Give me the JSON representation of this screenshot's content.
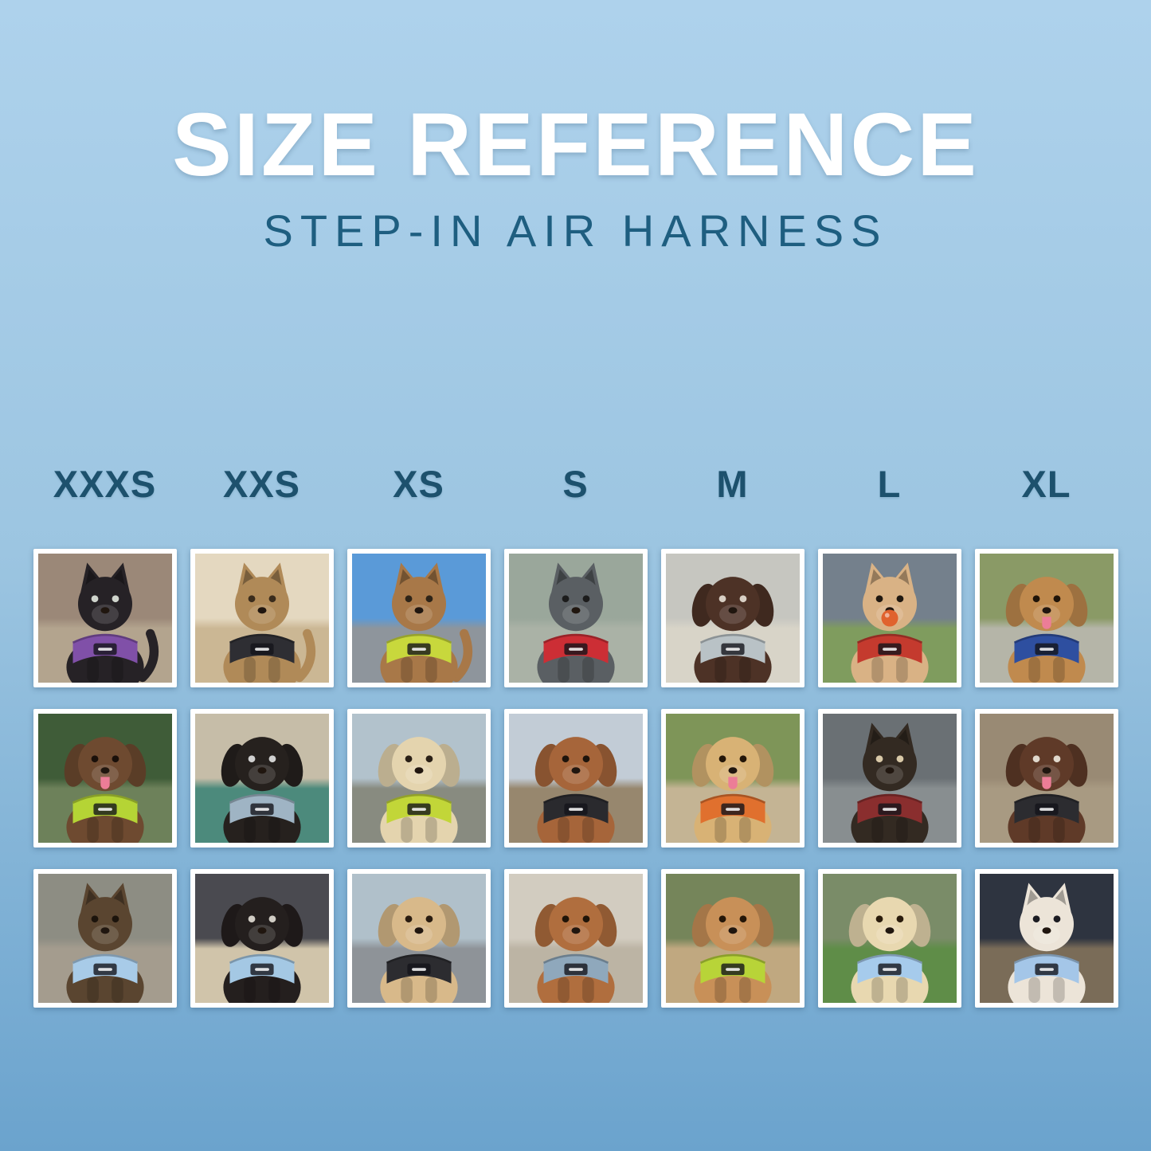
{
  "page": {
    "title": "SIZE REFERENCE",
    "subtitle": "STEP-IN AIR HARNESS"
  },
  "colors": {
    "background_top": "#aed2ec",
    "background_mid": "#9cc5e1",
    "background_bottom": "#6ba3cd",
    "title_text": "#ffffff",
    "subtitle_text": "#1e5e80",
    "size_label_text": "#1d516d",
    "card_background": "#ffffff"
  },
  "sizes": [
    "XXXS",
    "XXS",
    "XS",
    "S",
    "M",
    "L",
    "XL"
  ],
  "grid": {
    "rows": [
      {
        "cells": [
          {
            "size": "XXXS",
            "animal": "cat",
            "ears": "pointy",
            "coat": "#262226",
            "eyes": "#cfd4cc",
            "harness": "#8050a8",
            "scene_top": "#9b8878",
            "scene_bottom": "#b3a48e",
            "desc": "Black kitten in purple harness indoors"
          },
          {
            "size": "XXS",
            "animal": "cat",
            "ears": "pointy",
            "coat": "#b08a58",
            "eyes": "#3a2c1c",
            "harness": "#2e2e33",
            "scene_top": "#e4d8c0",
            "scene_bottom": "#cbb794",
            "desc": "Bengal cat in black harness by a curtain"
          },
          {
            "size": "XS",
            "animal": "cat",
            "ears": "pointy",
            "coat": "#a87848",
            "eyes": "#2e2418",
            "harness": "#c8d83c",
            "scene_top": "#5a9ad8",
            "scene_bottom": "#8e959c",
            "desc": "Bengal cat in lime green harness in a car"
          },
          {
            "size": "S",
            "animal": "dog",
            "ears": "pointy",
            "coat": "#5a5f63",
            "eyes": "#1c1c1c",
            "harness": "#cc2e35",
            "scene_top": "#9aa79b",
            "scene_bottom": "#aab2a6",
            "desc": "Gray French bulldog in red harness on a road"
          },
          {
            "size": "M",
            "animal": "dog",
            "ears": "floppy",
            "coat": "#4d3226",
            "eyes": "#d8cfc4",
            "harness": "#b9c2c6",
            "scene_top": "#c6c6c0",
            "scene_bottom": "#d8d4c8",
            "desc": "Chocolate spaniel in gray harness on concrete"
          },
          {
            "size": "L",
            "animal": "dog",
            "ears": "pointy",
            "coat": "#d9b285",
            "eyes": "#201810",
            "harness": "#c43a2e",
            "ball": "#e0622e",
            "scene_top": "#74808c",
            "scene_bottom": "#7f9c5e",
            "desc": "Shiba Inu holding an orange ball, red harness, grassy field"
          },
          {
            "size": "XL",
            "animal": "dog",
            "ears": "floppy",
            "coat": "#c08a4e",
            "eyes": "#201408",
            "harness": "#2e4fa0",
            "tongue": true,
            "scene_top": "#8a9a66",
            "scene_bottom": "#b5b5a8",
            "desc": "Golden retriever in blue harness on a flower-lined path"
          }
        ]
      },
      {
        "cells": [
          {
            "size": "XXXS",
            "animal": "dog",
            "ears": "floppy",
            "coat": "#6e4a30",
            "eyes": "#1a100a",
            "harness": "#b5d435",
            "tongue": true,
            "scene_top": "#3f5c38",
            "scene_bottom": "#6d815a",
            "desc": "Wirehaired dachshund in lime green harness among greenery"
          },
          {
            "size": "XXS",
            "animal": "dog",
            "ears": "floppy",
            "coat": "#26211e",
            "eyes": "#d0d0d0",
            "harness": "#9fb4c4",
            "scene_top": "#c6bda8",
            "scene_bottom": "#4c8a7c",
            "desc": "Black pug puppy in gray-blue harness on a teal blanket"
          },
          {
            "size": "XS",
            "animal": "dog",
            "ears": "floppy",
            "coat": "#e4d4ae",
            "eyes": "#2a2016",
            "harness": "#c2d638",
            "scene_top": "#b2c2cc",
            "scene_bottom": "#888b80",
            "desc": "Cream longhaired dachshund in lime green harness on a boardwalk"
          },
          {
            "size": "S",
            "animal": "dog",
            "ears": "floppy",
            "coat": "#a6653a",
            "eyes": "#1e140c",
            "harness": "#2a2a2e",
            "scene_top": "#c2ccd6",
            "scene_bottom": "#97876e",
            "desc": "Longhaired dachshund in black harness on a waterfront deck"
          },
          {
            "size": "M",
            "animal": "dog",
            "ears": "floppy",
            "coat": "#d8b275",
            "eyes": "#241608",
            "harness": "#e0702e",
            "tongue": true,
            "scene_top": "#7e9558",
            "scene_bottom": "#c4b494",
            "desc": "Golden retriever puppy in orange harness on a patio"
          },
          {
            "size": "L",
            "animal": "dog",
            "ears": "pointy",
            "coat": "#332a22",
            "eyes": "#d9c9a8",
            "harness": "#8a2e2e",
            "scene_top": "#6a7074",
            "scene_bottom": "#888e90",
            "desc": "Black-and-tan dog in dark red harness inside a metal tunnel"
          },
          {
            "size": "XL",
            "animal": "dog",
            "ears": "floppy",
            "coat": "#5f3a28",
            "eyes": "#e0d8cc",
            "harness": "#2c2c30",
            "tongue": true,
            "scene_top": "#998a74",
            "scene_bottom": "#a89a82",
            "desc": "Brown-and-white shepherd in black harness by a wooden fence"
          }
        ]
      },
      {
        "cells": [
          {
            "size": "XXXS",
            "animal": "dog",
            "ears": "pointy",
            "coat": "#5a4530",
            "eyes": "#1c140c",
            "harness": "#a8cbe8",
            "scene_top": "#8d8d83",
            "scene_bottom": "#a49c8e",
            "desc": "Yorkie puppy in light blue harness on a sunny sidewalk"
          },
          {
            "size": "XXS",
            "animal": "dog",
            "ears": "floppy",
            "coat": "#241f1e",
            "eyes": "#d0ccc4",
            "harness": "#a4c8e4",
            "scene_top": "#4a4a50",
            "scene_bottom": "#d0c4aa",
            "desc": "Black-and-tan dachshund in light blue harness on a car seat"
          },
          {
            "size": "XS",
            "animal": "dog",
            "ears": "floppy",
            "coat": "#d8b98a",
            "eyes": "#2a1c10",
            "harness": "#2c2c30",
            "scene_top": "#b0c0ca",
            "scene_bottom": "#8e9398",
            "desc": "Apricot poodle puppy in black harness on a dock"
          },
          {
            "size": "S",
            "animal": "dog",
            "ears": "floppy",
            "coat": "#b06e3e",
            "eyes": "#201408",
            "harness": "#8fa8bc",
            "scene_top": "#d2ccc0",
            "scene_bottom": "#bcb4a4",
            "desc": "Red dachshund in slate blue harness on pavement"
          },
          {
            "size": "M",
            "animal": "dog",
            "ears": "floppy",
            "coat": "#c89058",
            "eyes": "#241608",
            "harness": "#b8d438",
            "scene_top": "#75855a",
            "scene_bottom": "#c0a880",
            "desc": "Apricot doodle in lime green harness by stone steps"
          },
          {
            "size": "L",
            "animal": "dog",
            "ears": "floppy",
            "coat": "#e8d8b0",
            "eyes": "#2a1c0c",
            "harness": "#a6cbec",
            "scene_top": "#7a8c68",
            "scene_bottom": "#5f8d48",
            "desc": "Cream golden retriever puppy in light blue harness on grass"
          },
          {
            "size": "XL",
            "animal": "dog",
            "ears": "pointy",
            "coat": "#ece4d8",
            "eyes": "#1c1c22",
            "harness": "#a4c6e8",
            "scene_top": "#2e3440",
            "scene_bottom": "#7a6c58",
            "desc": "White shepherd in light blue harness on a city street at night"
          }
        ]
      }
    ]
  }
}
